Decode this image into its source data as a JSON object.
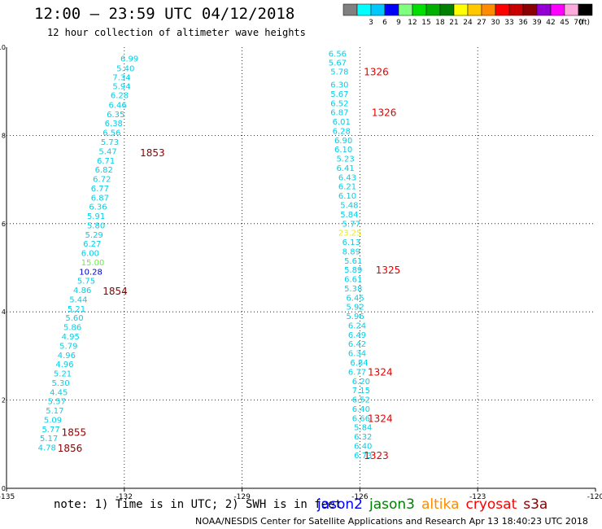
{
  "header": {
    "title": "12:00 — 23:59 UTC 04/12/2018",
    "subtitle": "12 hour collection of altimeter wave heights"
  },
  "legend": {
    "unit_label": "(ft)",
    "swatches": [
      {
        "color": "#808080",
        "label": ""
      },
      {
        "color": "#00ffff",
        "label": "3"
      },
      {
        "color": "#00c8ff",
        "label": "6"
      },
      {
        "color": "#0000ff",
        "label": "9"
      },
      {
        "color": "#7fff7f",
        "label": "12"
      },
      {
        "color": "#00e000",
        "label": "15"
      },
      {
        "color": "#00b000",
        "label": "18"
      },
      {
        "color": "#008000",
        "label": "21"
      },
      {
        "color": "#ffff00",
        "label": "24"
      },
      {
        "color": "#ffc800",
        "label": "27"
      },
      {
        "color": "#ff8c00",
        "label": "30"
      },
      {
        "color": "#ff0000",
        "label": "33"
      },
      {
        "color": "#c80000",
        "label": "36"
      },
      {
        "color": "#8b0000",
        "label": "39"
      },
      {
        "color": "#9400d3",
        "label": "42"
      },
      {
        "color": "#ff00ff",
        "label": "45"
      },
      {
        "color": "#ffaadd",
        "label": "70"
      },
      {
        "color": "#000000",
        "label": ""
      }
    ]
  },
  "footer": {
    "note": "note: 1) Time is in UTC; 2) SWH is in feet",
    "credit": "NOAA/NESDIS Center for Satellite Applications and Research    Apr 13 18:40:23 UTC 2018",
    "satellites": [
      {
        "name": "jason2",
        "color": "#0000ff"
      },
      {
        "name": "jason3",
        "color": "#008000"
      },
      {
        "name": "altika",
        "color": "#ff8c00"
      },
      {
        "name": "cryosat",
        "color": "#ff0000"
      },
      {
        "name": "s3a",
        "color": "#8b0000"
      }
    ]
  },
  "chart_data": {
    "type": "scatter",
    "title": "12:00 — 23:59 UTC 04/12/2018",
    "subtitle": "12 hour collection of altimeter wave heights",
    "xlabel": "",
    "ylabel": "",
    "xlim": [
      -135,
      -120
    ],
    "ylim": [
      0,
      10
    ],
    "x_ticks": [
      -135,
      -132,
      -129,
      -126,
      -123,
      -120
    ],
    "y_ticks": [
      0,
      2,
      4,
      6,
      8,
      10
    ],
    "grid": true,
    "colors": {
      "cyan": "#00d0e8",
      "green": "#66ee44",
      "yellow": "#eeee00",
      "blue": "#0000cc",
      "red": "#e00000",
      "darkred": "#8b0000"
    },
    "series": [
      {
        "track": "west",
        "points": [
          {
            "x": -132.1,
            "y": 9.75,
            "label": "6.99",
            "color": "cyan"
          },
          {
            "x": -132.2,
            "y": 9.53,
            "label": "5.40",
            "color": "cyan"
          },
          {
            "x": -132.3,
            "y": 9.33,
            "label": "7.34",
            "color": "cyan"
          },
          {
            "x": -132.3,
            "y": 9.12,
            "label": "5.94",
            "color": "cyan"
          },
          {
            "x": -132.35,
            "y": 8.92,
            "label": "6.28",
            "color": "cyan"
          },
          {
            "x": -132.4,
            "y": 8.7,
            "label": "6.46",
            "color": "cyan"
          },
          {
            "x": -132.45,
            "y": 8.49,
            "label": "6.35",
            "color": "cyan"
          },
          {
            "x": -132.5,
            "y": 8.28,
            "label": "6.38",
            "color": "cyan"
          },
          {
            "x": -132.55,
            "y": 8.07,
            "label": "6.56",
            "color": "cyan"
          },
          {
            "x": -132.6,
            "y": 7.86,
            "label": "5.73",
            "color": "cyan"
          },
          {
            "x": -132.65,
            "y": 7.65,
            "label": "5.47",
            "color": "cyan"
          },
          {
            "x": -132.7,
            "y": 7.44,
            "label": "6.71",
            "color": "cyan"
          },
          {
            "x": -132.75,
            "y": 7.23,
            "label": "6.82",
            "color": "cyan"
          },
          {
            "x": -132.8,
            "y": 7.02,
            "label": "6.72",
            "color": "cyan"
          },
          {
            "x": -132.85,
            "y": 6.81,
            "label": "6.77",
            "color": "cyan"
          },
          {
            "x": -132.85,
            "y": 6.6,
            "label": "6.87",
            "color": "cyan"
          },
          {
            "x": -132.9,
            "y": 6.39,
            "label": "6.36",
            "color": "cyan"
          },
          {
            "x": -132.95,
            "y": 6.18,
            "label": "5.91",
            "color": "cyan"
          },
          {
            "x": -132.95,
            "y": 5.97,
            "label": "5.80",
            "color": "cyan"
          },
          {
            "x": -133.0,
            "y": 5.76,
            "label": "5.29",
            "color": "cyan"
          },
          {
            "x": -133.05,
            "y": 5.55,
            "label": "6.27",
            "color": "cyan"
          },
          {
            "x": -133.1,
            "y": 5.34,
            "label": "6.00",
            "color": "cyan"
          },
          {
            "x": -133.1,
            "y": 5.13,
            "label": "15.00",
            "color": "green"
          },
          {
            "x": -133.15,
            "y": 4.92,
            "label": "10.28",
            "color": "blue"
          },
          {
            "x": -133.2,
            "y": 4.71,
            "label": "5.75",
            "color": "cyan"
          },
          {
            "x": -133.3,
            "y": 4.5,
            "label": "4.86",
            "color": "cyan"
          },
          {
            "x": -133.4,
            "y": 4.29,
            "label": "5.44",
            "color": "cyan"
          },
          {
            "x": -133.45,
            "y": 4.08,
            "label": "5.21",
            "color": "cyan"
          },
          {
            "x": -133.5,
            "y": 3.87,
            "label": "5.60",
            "color": "cyan"
          },
          {
            "x": -133.55,
            "y": 3.66,
            "label": "5.86",
            "color": "cyan"
          },
          {
            "x": -133.6,
            "y": 3.45,
            "label": "4.95",
            "color": "cyan"
          },
          {
            "x": -133.65,
            "y": 3.24,
            "label": "5.79",
            "color": "cyan"
          },
          {
            "x": -133.7,
            "y": 3.03,
            "label": "4.96",
            "color": "cyan"
          },
          {
            "x": -133.75,
            "y": 2.82,
            "label": "4.96",
            "color": "cyan"
          },
          {
            "x": -133.8,
            "y": 2.61,
            "label": "5.21",
            "color": "cyan"
          },
          {
            "x": -133.85,
            "y": 2.4,
            "label": "5.30",
            "color": "cyan"
          },
          {
            "x": -133.9,
            "y": 2.19,
            "label": "4.45",
            "color": "cyan"
          },
          {
            "x": -133.95,
            "y": 1.98,
            "label": "5.57",
            "color": "cyan"
          },
          {
            "x": -134.0,
            "y": 1.77,
            "label": "5.17",
            "color": "cyan"
          },
          {
            "x": -134.05,
            "y": 1.56,
            "label": "5.09",
            "color": "cyan"
          },
          {
            "x": -134.1,
            "y": 1.35,
            "label": "5.77",
            "color": "cyan"
          },
          {
            "x": -134.15,
            "y": 1.14,
            "label": "5.17",
            "color": "cyan"
          },
          {
            "x": -134.2,
            "y": 0.93,
            "label": "4.78",
            "color": "cyan"
          }
        ]
      },
      {
        "track": "east",
        "points": [
          {
            "x": -126.8,
            "y": 9.86,
            "label": "6.56",
            "color": "cyan"
          },
          {
            "x": -126.8,
            "y": 9.66,
            "label": "5.67",
            "color": "cyan"
          },
          {
            "x": -126.75,
            "y": 9.46,
            "label": "5.78",
            "color": "cyan"
          },
          {
            "x": -126.75,
            "y": 9.16,
            "label": "6.30",
            "color": "cyan"
          },
          {
            "x": -126.75,
            "y": 8.95,
            "label": "5.67",
            "color": "cyan"
          },
          {
            "x": -126.75,
            "y": 8.74,
            "label": "6.52",
            "color": "cyan"
          },
          {
            "x": -126.75,
            "y": 8.53,
            "label": "6.87",
            "color": "cyan"
          },
          {
            "x": -126.7,
            "y": 8.32,
            "label": "6.01",
            "color": "cyan"
          },
          {
            "x": -126.7,
            "y": 8.11,
            "label": "6.28",
            "color": "cyan"
          },
          {
            "x": -126.65,
            "y": 7.9,
            "label": "6.90",
            "color": "cyan"
          },
          {
            "x": -126.65,
            "y": 7.69,
            "label": "6.10",
            "color": "cyan"
          },
          {
            "x": -126.6,
            "y": 7.48,
            "label": "5.23",
            "color": "cyan"
          },
          {
            "x": -126.6,
            "y": 7.27,
            "label": "6.41",
            "color": "cyan"
          },
          {
            "x": -126.55,
            "y": 7.06,
            "label": "6.43",
            "color": "cyan"
          },
          {
            "x": -126.55,
            "y": 6.85,
            "label": "6.21",
            "color": "cyan"
          },
          {
            "x": -126.55,
            "y": 6.64,
            "label": "6.10",
            "color": "cyan"
          },
          {
            "x": -126.5,
            "y": 6.43,
            "label": "5.48",
            "color": "cyan"
          },
          {
            "x": -126.5,
            "y": 6.22,
            "label": "5.84",
            "color": "cyan"
          },
          {
            "x": -126.45,
            "y": 6.01,
            "label": "5.77",
            "color": "cyan"
          },
          {
            "x": -126.55,
            "y": 5.8,
            "label": "23.25",
            "color": "yellow"
          },
          {
            "x": -126.45,
            "y": 5.59,
            "label": "6.13",
            "color": "cyan"
          },
          {
            "x": -126.45,
            "y": 5.38,
            "label": "8.89",
            "color": "cyan"
          },
          {
            "x": -126.4,
            "y": 5.17,
            "label": "5.61",
            "color": "cyan"
          },
          {
            "x": -126.4,
            "y": 4.96,
            "label": "5.89",
            "color": "cyan"
          },
          {
            "x": -126.4,
            "y": 4.75,
            "label": "6.61",
            "color": "cyan"
          },
          {
            "x": -126.4,
            "y": 4.54,
            "label": "5.38",
            "color": "cyan"
          },
          {
            "x": -126.35,
            "y": 4.33,
            "label": "6.45",
            "color": "cyan"
          },
          {
            "x": -126.35,
            "y": 4.12,
            "label": "5.92",
            "color": "cyan"
          },
          {
            "x": -126.35,
            "y": 3.91,
            "label": "5.96",
            "color": "cyan"
          },
          {
            "x": -126.3,
            "y": 3.7,
            "label": "6.24",
            "color": "cyan"
          },
          {
            "x": -126.3,
            "y": 3.49,
            "label": "6.49",
            "color": "cyan"
          },
          {
            "x": -126.3,
            "y": 3.28,
            "label": "6.42",
            "color": "cyan"
          },
          {
            "x": -126.3,
            "y": 3.07,
            "label": "6.34",
            "color": "cyan"
          },
          {
            "x": -126.25,
            "y": 2.86,
            "label": "6.84",
            "color": "cyan"
          },
          {
            "x": -126.3,
            "y": 2.65,
            "label": "6.77",
            "color": "cyan"
          },
          {
            "x": -126.2,
            "y": 2.44,
            "label": "6.20",
            "color": "cyan"
          },
          {
            "x": -126.2,
            "y": 2.23,
            "label": "7.15",
            "color": "cyan"
          },
          {
            "x": -126.2,
            "y": 2.02,
            "label": "6.52",
            "color": "cyan"
          },
          {
            "x": -126.2,
            "y": 1.81,
            "label": "6.40",
            "color": "cyan"
          },
          {
            "x": -126.2,
            "y": 1.6,
            "label": "6.66",
            "color": "cyan"
          },
          {
            "x": -126.15,
            "y": 1.39,
            "label": "5.84",
            "color": "cyan"
          },
          {
            "x": -126.15,
            "y": 1.18,
            "label": "6.32",
            "color": "cyan"
          },
          {
            "x": -126.15,
            "y": 0.97,
            "label": "6.40",
            "color": "cyan"
          },
          {
            "x": -126.15,
            "y": 0.76,
            "label": "6.73",
            "color": "cyan"
          }
        ]
      }
    ],
    "time_labels": [
      {
        "x": -131.6,
        "y": 7.62,
        "label": "1853",
        "color": "darkred"
      },
      {
        "x": -132.55,
        "y": 4.48,
        "label": "1854",
        "color": "darkred"
      },
      {
        "x": -133.6,
        "y": 1.28,
        "label": "1855",
        "color": "darkred"
      },
      {
        "x": -133.7,
        "y": 0.92,
        "label": "1856",
        "color": "darkred"
      },
      {
        "x": -125.9,
        "y": 9.46,
        "label": "1326",
        "color": "red"
      },
      {
        "x": -125.7,
        "y": 8.53,
        "label": "1326",
        "color": "red"
      },
      {
        "x": -125.6,
        "y": 4.96,
        "label": "1325",
        "color": "red"
      },
      {
        "x": -125.8,
        "y": 2.65,
        "label": "1324",
        "color": "red"
      },
      {
        "x": -125.8,
        "y": 1.6,
        "label": "1324",
        "color": "red"
      },
      {
        "x": -125.9,
        "y": 0.76,
        "label": "1323",
        "color": "red"
      }
    ]
  }
}
